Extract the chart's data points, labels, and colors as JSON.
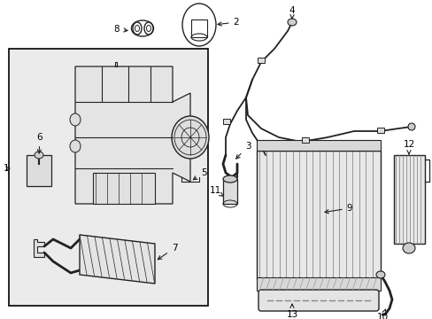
{
  "background_color": "#ffffff",
  "fig_width": 4.89,
  "fig_height": 3.6,
  "dpi": 100,
  "font_size": 7.5,
  "line_color": "#222222",
  "fill_color": "#e8e8e8",
  "box_fill": "#ebebeb"
}
